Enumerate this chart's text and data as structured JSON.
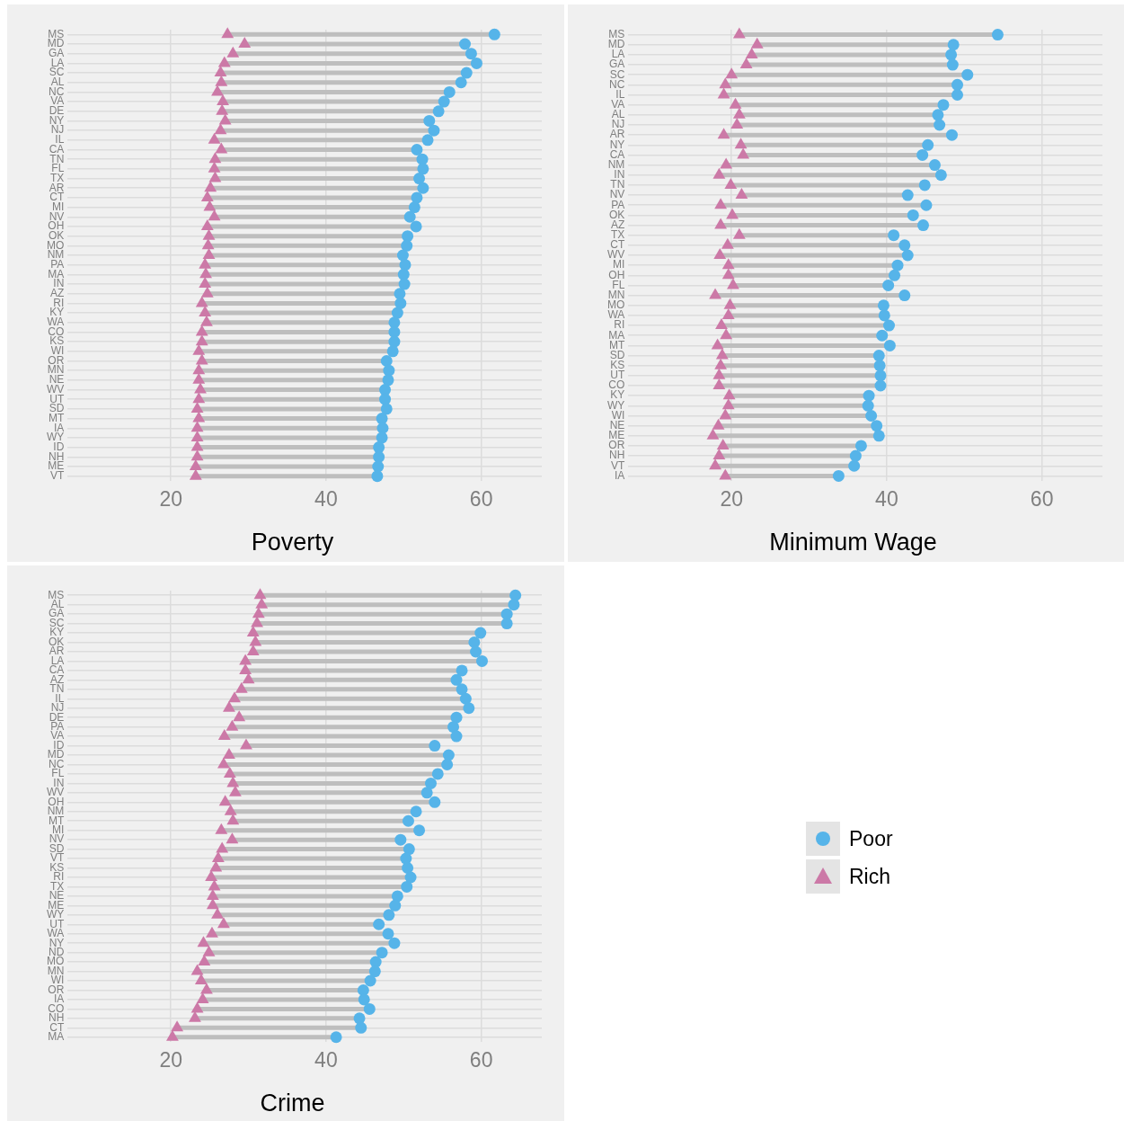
{
  "chart_data": [
    {
      "type": "scatter",
      "title": "Poverty",
      "orientation": "horizontal",
      "grid": true,
      "xlim": [
        6.7,
        67.8
      ],
      "xticks": [
        20,
        40,
        60
      ],
      "categories": [
        "MS",
        "MD",
        "GA",
        "LA",
        "SC",
        "AL",
        "NC",
        "VA",
        "DE",
        "NY",
        "NJ",
        "IL",
        "CA",
        "TN",
        "FL",
        "TX",
        "AR",
        "CT",
        "MI",
        "NV",
        "OH",
        "OK",
        "MO",
        "NM",
        "PA",
        "MA",
        "IN",
        "AZ",
        "RI",
        "KY",
        "WA",
        "CO",
        "KS",
        "WI",
        "OR",
        "MN",
        "NE",
        "WV",
        "UT",
        "SD",
        "MT",
        "IA",
        "WY",
        "ID",
        "NH",
        "ME",
        "VT"
      ],
      "series": [
        {
          "color": "#56b4e9",
          "marker": "circle",
          "values": [
            61.7,
            57.9,
            58.7,
            59.4,
            58.1,
            57.4,
            55.9,
            55.2,
            54.5,
            53.3,
            53.9,
            53.1,
            51.7,
            52.4,
            52.5,
            52.0,
            52.5,
            51.7,
            51.4,
            50.8,
            51.6,
            50.5,
            50.4,
            49.9,
            50.2,
            50.0,
            50.1,
            49.5,
            49.6,
            49.2,
            48.8,
            48.8,
            48.8,
            48.6,
            47.8,
            48.1,
            48.0,
            47.6,
            47.6,
            47.8,
            47.2,
            47.3,
            47.2,
            46.8,
            46.8,
            46.7,
            46.6
          ]
        },
        {
          "color": "#cc79a7",
          "marker": "triangle",
          "values": [
            27.3,
            29.5,
            28.0,
            26.9,
            26.4,
            26.5,
            26.0,
            26.7,
            26.6,
            27.0,
            26.4,
            25.6,
            26.5,
            25.7,
            25.6,
            25.7,
            25.1,
            24.7,
            25.0,
            25.6,
            24.7,
            24.9,
            24.8,
            24.9,
            24.4,
            24.5,
            24.4,
            24.7,
            24.0,
            24.4,
            24.6,
            24.0,
            24.0,
            23.6,
            24.0,
            23.6,
            23.6,
            23.8,
            23.6,
            23.4,
            23.6,
            23.4,
            23.4,
            23.4,
            23.4,
            23.2,
            23.2
          ]
        }
      ]
    },
    {
      "type": "scatter",
      "title": "Minimum Wage",
      "orientation": "horizontal",
      "grid": true,
      "xlim": [
        6.7,
        67.8
      ],
      "xticks": [
        20,
        40,
        60
      ],
      "categories": [
        "MS",
        "MD",
        "LA",
        "GA",
        "SC",
        "NC",
        "IL",
        "VA",
        "AL",
        "NJ",
        "AR",
        "NY",
        "CA",
        "NM",
        "IN",
        "TN",
        "NV",
        "PA",
        "OK",
        "AZ",
        "TX",
        "CT",
        "WV",
        "MI",
        "OH",
        "FL",
        "MN",
        "MO",
        "WA",
        "RI",
        "MA",
        "MT",
        "SD",
        "KS",
        "UT",
        "CO",
        "KY",
        "WY",
        "WI",
        "NE",
        "ME",
        "OR",
        "NH",
        "VT",
        "IA"
      ],
      "series": [
        {
          "color": "#56b4e9",
          "marker": "circle",
          "values": [
            54.3,
            48.6,
            48.3,
            48.5,
            50.4,
            49.1,
            49.1,
            47.3,
            46.6,
            46.8,
            48.4,
            45.3,
            44.6,
            46.2,
            47.0,
            44.9,
            42.7,
            45.1,
            43.4,
            44.7,
            40.9,
            42.3,
            42.7,
            41.4,
            41.0,
            40.2,
            42.3,
            39.6,
            39.7,
            40.3,
            39.4,
            40.4,
            39.0,
            39.1,
            39.2,
            39.2,
            37.7,
            37.6,
            38.0,
            38.7,
            39.0,
            36.7,
            36.0,
            35.8,
            33.8
          ]
        },
        {
          "color": "#cc79a7",
          "marker": "triangle",
          "values": [
            21.0,
            23.3,
            22.6,
            21.9,
            20.0,
            19.2,
            19.0,
            20.5,
            21.0,
            20.7,
            19.0,
            21.2,
            21.5,
            19.3,
            18.4,
            19.9,
            21.3,
            18.6,
            20.1,
            18.6,
            21.0,
            19.5,
            18.5,
            19.6,
            19.6,
            20.2,
            17.9,
            19.8,
            19.6,
            18.7,
            19.3,
            18.2,
            18.8,
            18.6,
            18.4,
            18.4,
            19.7,
            19.6,
            19.2,
            18.3,
            17.6,
            18.9,
            18.4,
            17.9,
            19.2
          ]
        }
      ]
    },
    {
      "type": "scatter",
      "title": "Crime",
      "orientation": "horizontal",
      "grid": true,
      "legend": "right",
      "xlim": [
        6.7,
        67.8
      ],
      "xticks": [
        20,
        40,
        60
      ],
      "categories": [
        "MS",
        "AL",
        "GA",
        "SC",
        "KY",
        "OK",
        "AR",
        "LA",
        "CA",
        "AZ",
        "TN",
        "IL",
        "NJ",
        "DE",
        "PA",
        "VA",
        "ID",
        "MD",
        "NC",
        "FL",
        "IN",
        "WV",
        "OH",
        "NM",
        "MT",
        "MI",
        "NV",
        "SD",
        "VT",
        "KS",
        "RI",
        "TX",
        "NE",
        "ME",
        "WY",
        "UT",
        "WA",
        "NY",
        "ND",
        "MO",
        "MN",
        "WI",
        "OR",
        "IA",
        "CO",
        "NH",
        "CT",
        "MA"
      ],
      "series": [
        {
          "name": "Poor",
          "color": "#56b4e9",
          "marker": "circle",
          "values": [
            64.4,
            64.2,
            63.3,
            63.3,
            59.9,
            59.1,
            59.3,
            60.1,
            57.5,
            56.8,
            57.5,
            58.0,
            58.4,
            56.8,
            56.4,
            56.8,
            54.0,
            55.8,
            55.6,
            54.4,
            53.5,
            53.0,
            54.0,
            51.6,
            50.6,
            52.0,
            49.6,
            50.7,
            50.3,
            50.5,
            50.9,
            50.4,
            49.2,
            48.9,
            48.1,
            46.8,
            48.0,
            48.8,
            47.2,
            46.4,
            46.3,
            45.7,
            44.8,
            44.9,
            45.6,
            44.3,
            44.5,
            41.3
          ]
        },
        {
          "name": "Rich",
          "color": "#cc79a7",
          "marker": "triangle",
          "values": [
            31.5,
            31.7,
            31.3,
            31.1,
            30.6,
            30.9,
            30.6,
            29.6,
            29.6,
            30.0,
            29.1,
            28.2,
            27.5,
            28.8,
            27.9,
            26.9,
            29.7,
            27.5,
            26.8,
            27.6,
            28.0,
            28.3,
            27.0,
            27.7,
            28.0,
            26.5,
            27.9,
            26.6,
            26.1,
            25.8,
            25.2,
            25.6,
            25.4,
            25.4,
            26.0,
            26.8,
            25.3,
            24.2,
            24.9,
            24.3,
            23.4,
            23.9,
            24.6,
            24.1,
            23.4,
            23.1,
            20.8,
            20.2
          ]
        }
      ]
    }
  ]
}
